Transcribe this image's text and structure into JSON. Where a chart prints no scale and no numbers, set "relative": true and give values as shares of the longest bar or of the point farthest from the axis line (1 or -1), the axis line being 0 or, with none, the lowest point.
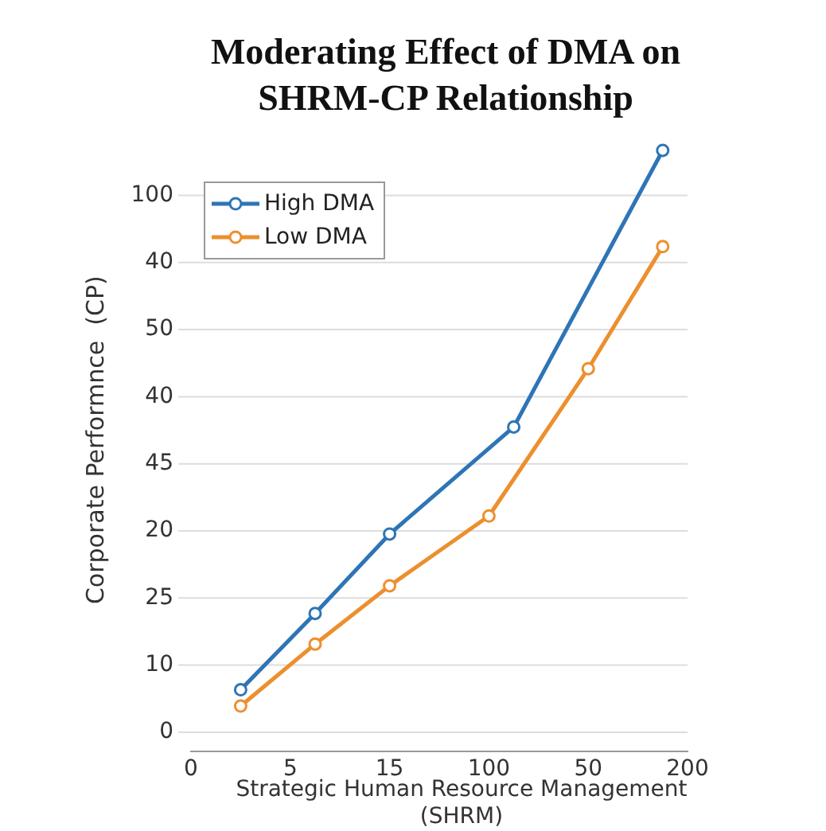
{
  "chart_data": {
    "type": "line",
    "title": "Moderating Effect of DMA on SHRM-CP Relationship",
    "xlabel": "Strategic Human Resource Management (SHRM)",
    "ylabel": "Corporate Performnce  (CP)",
    "categories": [
      "0",
      null,
      null,
      null,
      "5",
      null,
      null,
      null,
      "15",
      null,
      null,
      null,
      "100",
      null,
      null,
      null,
      "50",
      null,
      null,
      null,
      "200"
    ],
    "relative": true,
    "annotations": [
      "0",
      "10",
      "25",
      "20",
      "45",
      "40",
      "50",
      "40",
      "100"
    ],
    "series": [
      {
        "name": "High DMA",
        "color": "#2e75b6",
        "values": [
          null,
          null,
          0.103,
          null,
          null,
          0.23,
          null,
          null,
          0.362,
          null,
          null,
          null,
          null,
          0.54,
          null,
          null,
          null,
          null,
          null,
          1,
          null
        ]
      },
      {
        "name": "Low DMA",
        "color": "#ed8f2e",
        "values": [
          null,
          null,
          0.076,
          null,
          null,
          0.179,
          null,
          null,
          0.276,
          null,
          null,
          null,
          0.392,
          null,
          null,
          null,
          0.637,
          null,
          null,
          0.84,
          null
        ]
      }
    ],
    "grid": "y",
    "legend": "top left",
    "marker": "circle",
    "line_style": "solid"
  }
}
